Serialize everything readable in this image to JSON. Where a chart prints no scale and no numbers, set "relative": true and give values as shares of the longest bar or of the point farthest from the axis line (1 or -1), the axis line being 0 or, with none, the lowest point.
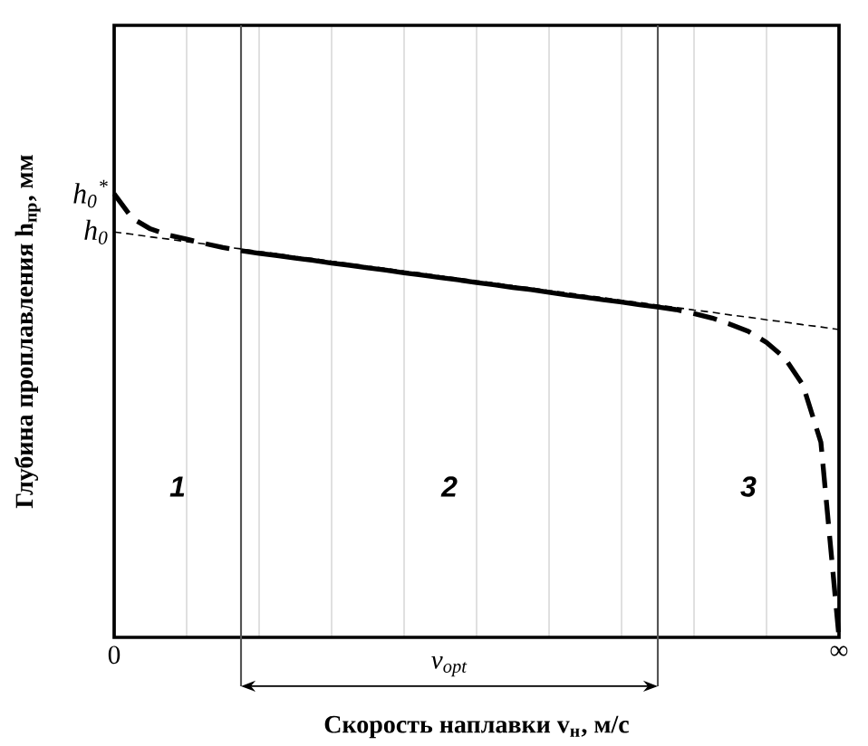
{
  "chart_data": {
    "type": "line",
    "relative": true,
    "xlabel": "Скорость наплавки v$_{н}$, м/с",
    "ylabel": "Глубина проплавления h$_{пр}$, мм",
    "categories": [
      "0",
      null,
      null,
      null,
      null,
      null,
      null,
      null,
      null,
      null,
      null,
      null,
      null,
      null,
      null,
      null,
      null,
      null,
      null,
      null,
      null,
      null,
      null,
      null,
      null,
      null,
      null,
      null,
      null,
      null,
      null,
      null,
      null,
      null,
      null,
      null,
      null,
      null,
      null,
      null,
      "∞"
    ],
    "grid": true,
    "series": [
      {
        "color": "#000000",
        "line_style": "dashed",
        "values": [
          1,
          0.945,
          0.921,
          0.907,
          0.898,
          0.888,
          0.879,
          0.872,
          null,
          null,
          null,
          null,
          null,
          null,
          null,
          null,
          null,
          null,
          null,
          null,
          null,
          null,
          null,
          null,
          null,
          null,
          null,
          null,
          null,
          null,
          null,
          null,
          null,
          null,
          null,
          null,
          null,
          null,
          null,
          null,
          null
        ]
      },
      {
        "color": "#000000",
        "line_style": "solid",
        "values": [
          null,
          null,
          null,
          null,
          null,
          null,
          null,
          0.872,
          0.866,
          0.861,
          0.855,
          0.85,
          0.844,
          0.839,
          0.833,
          0.828,
          0.822,
          0.817,
          0.811,
          0.806,
          0.8,
          0.795,
          0.789,
          0.784,
          0.778,
          0.772,
          0.767,
          0.761,
          0.756,
          0.75,
          0.745,
          null,
          null,
          null,
          null,
          null,
          null,
          null,
          null,
          null,
          null
        ]
      },
      {
        "color": "#000000",
        "line_style": "dashed",
        "values": [
          null,
          null,
          null,
          null,
          null,
          null,
          null,
          null,
          null,
          null,
          null,
          null,
          null,
          null,
          null,
          null,
          null,
          null,
          null,
          null,
          null,
          null,
          null,
          null,
          null,
          null,
          null,
          null,
          null,
          null,
          0.745,
          0.739,
          0.73,
          0.72,
          0.706,
          0.69,
          0.665,
          0.63,
          0.57,
          0.44,
          0.0
        ]
      },
      {
        "color": "#000000",
        "line_style": "dotted",
        "values": [
          0.914,
          0.909,
          0.903,
          0.898,
          0.892,
          0.887,
          0.881,
          0.876,
          0.87,
          0.865,
          0.859,
          0.854,
          0.848,
          0.843,
          0.837,
          0.832,
          0.826,
          0.821,
          0.815,
          0.81,
          0.804,
          0.799,
          0.793,
          0.788,
          0.782,
          0.777,
          0.771,
          0.766,
          0.76,
          0.755,
          0.749,
          0.744,
          0.738,
          0.733,
          0.727,
          0.722,
          0.716,
          0.711,
          0.705,
          0.7,
          0.694
        ]
      }
    ],
    "annotations": [
      "1",
      "2",
      "3",
      "v$_{opt}$",
      {
        "text": "h$_{0}$$^{*}$",
        "x": "0",
        "y": 1
      },
      {
        "text": "h$_{0}$",
        "x": "0",
        "y": 0.914
      }
    ]
  }
}
